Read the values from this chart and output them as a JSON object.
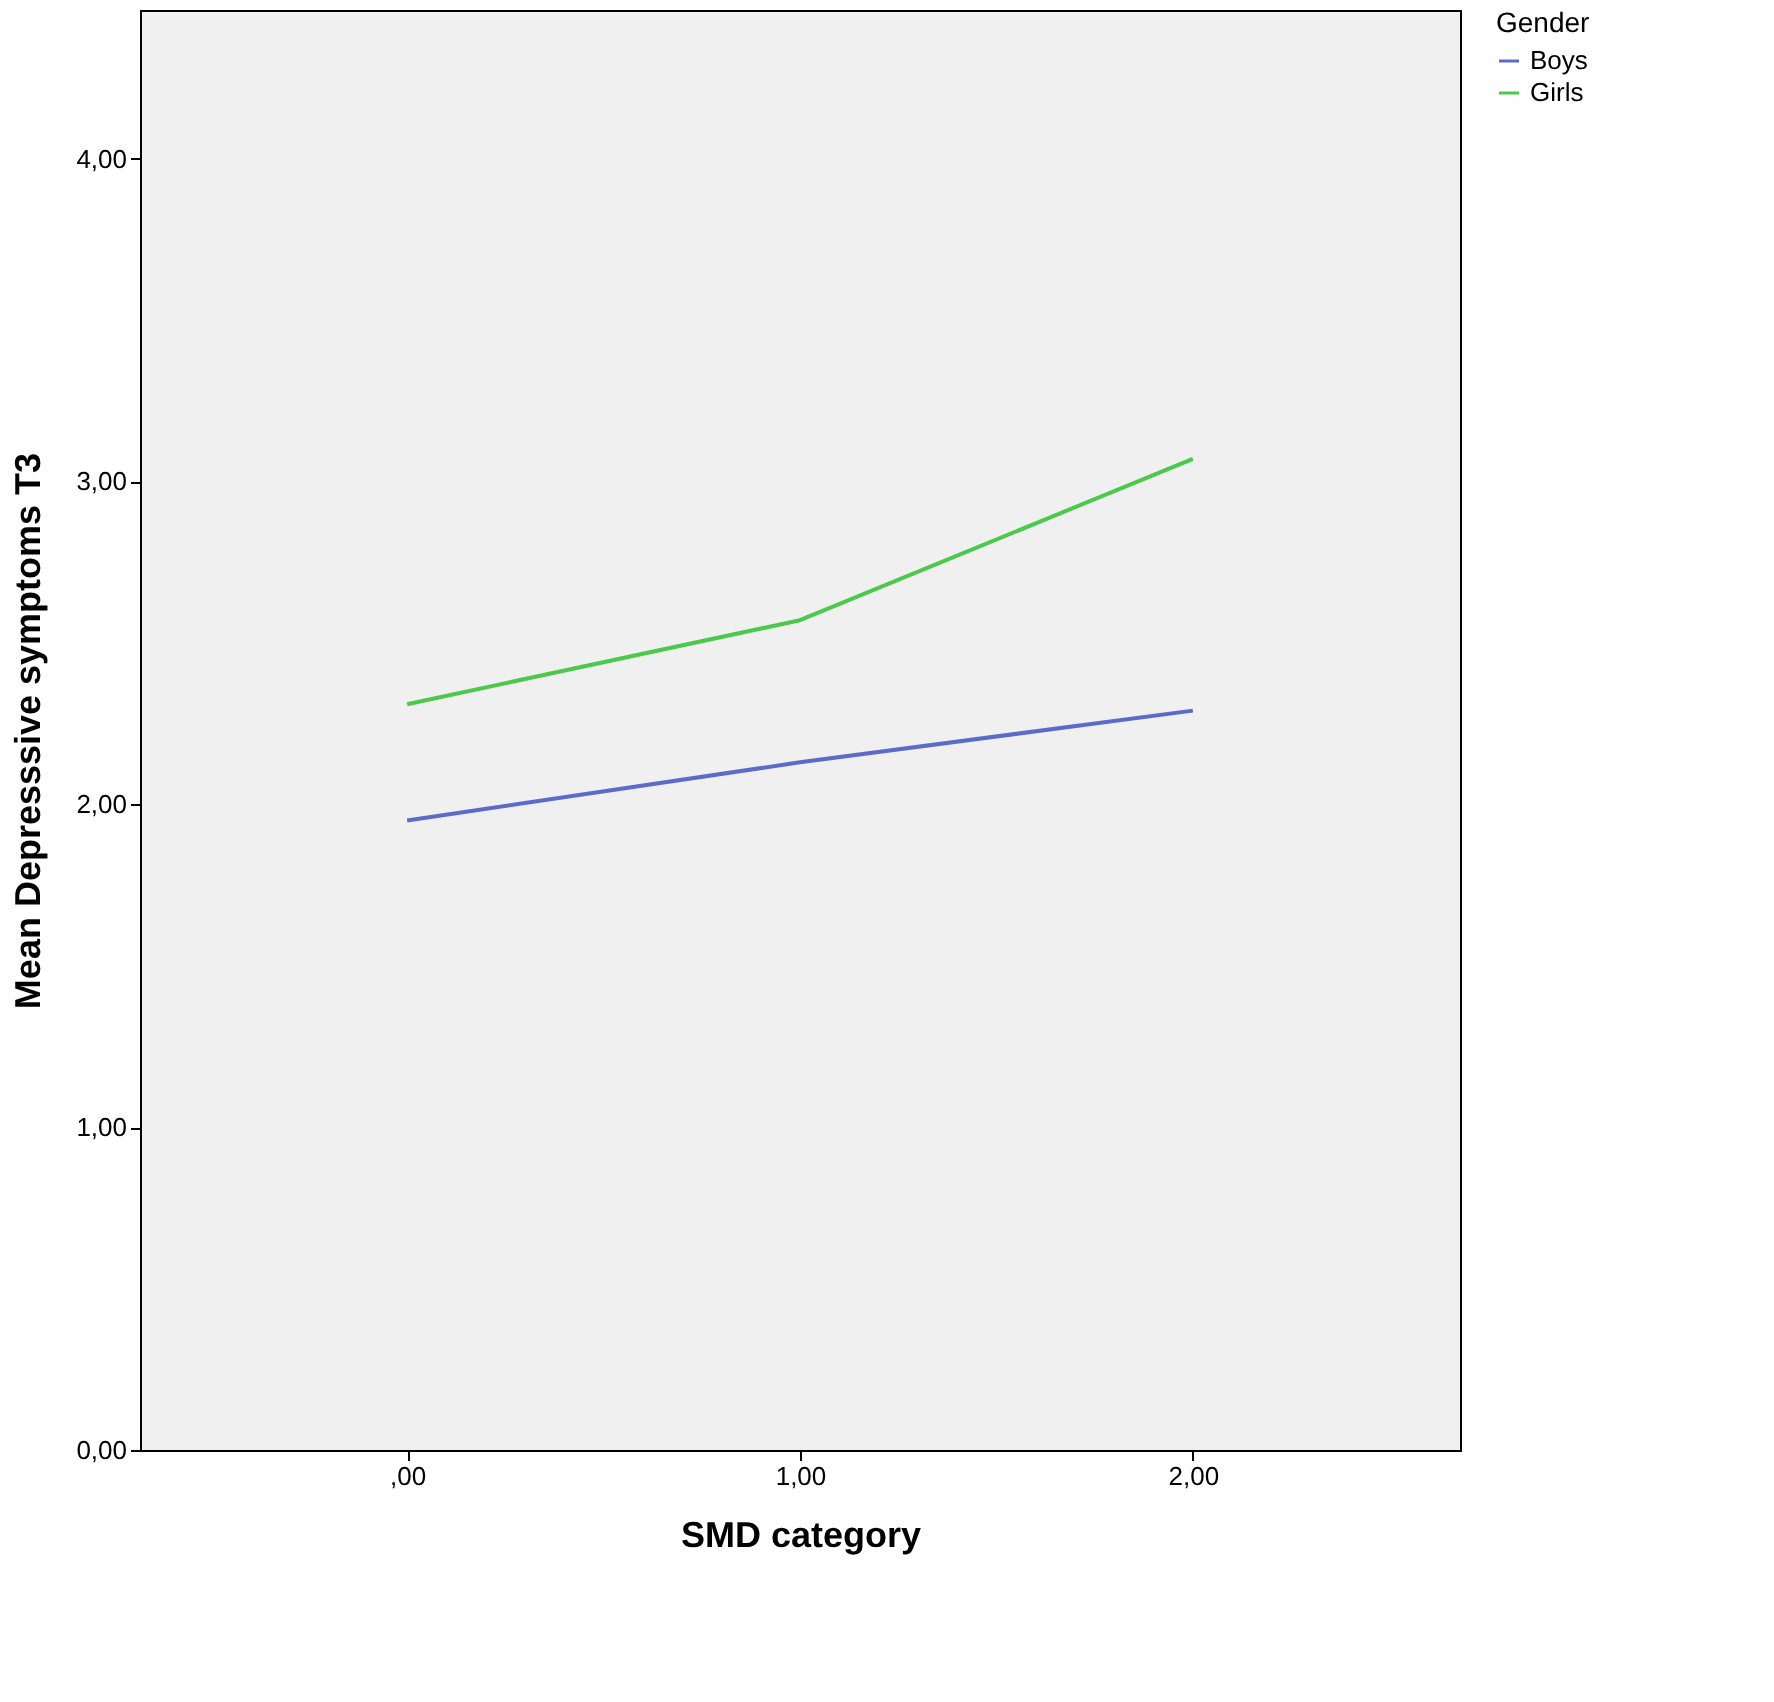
{
  "chart_data": {
    "type": "line",
    "xlabel": "SMD category",
    "ylabel": "Mean Depresssive symptoms T3",
    "legend_title": "Gender",
    "legend": "top right",
    "grid": false,
    "line_style": "solid",
    "marker": "none",
    "categories": [
      ",00",
      "1,00",
      "2,00"
    ],
    "series": [
      {
        "name": "Boys",
        "color": "#5b6bc9",
        "values": [
          1.95,
          2.13,
          2.29
        ]
      },
      {
        "name": "Girls",
        "color": "#4cc94c",
        "values": [
          2.31,
          2.57,
          3.07
        ]
      }
    ],
    "ylim": [
      0,
      4.46
    ],
    "yticks": [
      {
        "value": 0,
        "label": "0,00"
      },
      {
        "value": 1,
        "label": "1,00"
      },
      {
        "value": 2,
        "label": "2,00"
      },
      {
        "value": 3,
        "label": "3,00"
      },
      {
        "value": 4,
        "label": "4,00"
      }
    ]
  }
}
